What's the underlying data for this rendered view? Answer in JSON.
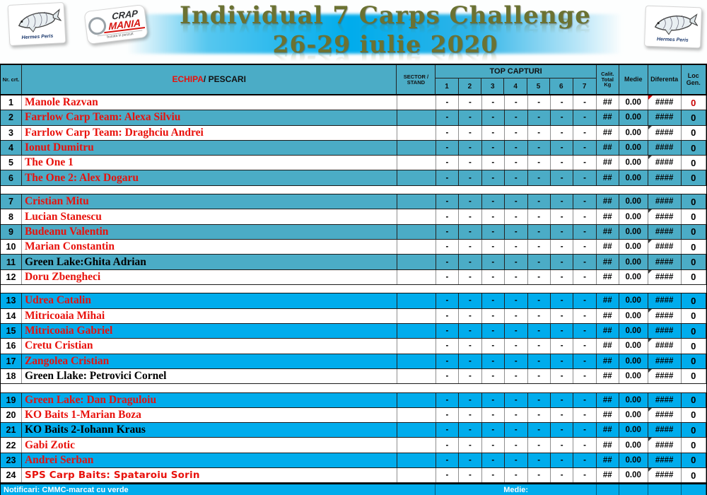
{
  "colors": {
    "teal": "#4BACC6",
    "blue": "#00ACEC",
    "red": "#E8120C",
    "olive": "#6B7232"
  },
  "header": {
    "title_line1": "Individual 7 Carps Challenge",
    "title_line2": "26-29 iulie 2020",
    "logo_left_brand": "Hermes Peris",
    "logo_right_brand": "Hermes Peris",
    "crap_line1": "CRAP",
    "crap_line2": "MANIA",
    "crap_tagline": "bucata in pescuit"
  },
  "table": {
    "headers": {
      "nr": "Nr. crt.",
      "echipa": "ECHIPA",
      "pescari": " / PESCARI",
      "sector": "SECTOR / STAND",
      "top_capturi": "TOP CAPTURI",
      "capture_cols": [
        "1",
        "2",
        "3",
        "4",
        "5",
        "6",
        "7"
      ],
      "calit": "Calit. Total Kg",
      "medie": "Medie",
      "diferenta": "Diferenta",
      "loc": "Loc Gen."
    },
    "gaps_after": [
      6,
      12,
      18
    ],
    "rows": [
      {
        "nr": "1",
        "name": "Manole Razvan",
        "style": "red",
        "shade": "white",
        "sector": "",
        "captures": [
          "-",
          "-",
          "-",
          "-",
          "-",
          "-",
          "-"
        ],
        "calit": "##",
        "medie": "0.00",
        "diferenta": "####",
        "loc": "0",
        "loc_red": true,
        "comment_marker": true
      },
      {
        "nr": "2",
        "name": "Farrlow Carp Team: Alexa Silviu",
        "style": "red",
        "shade": "teal",
        "sector": "",
        "captures": [
          "-",
          "-",
          "-",
          "-",
          "-",
          "-",
          "-"
        ],
        "calit": "##",
        "medie": "0.00",
        "diferenta": "####",
        "loc": "0",
        "loc_red": false
      },
      {
        "nr": "3",
        "name": "Farrlow Carp Team: Draghciu Andrei",
        "style": "red",
        "shade": "white",
        "sector": "",
        "captures": [
          "-",
          "-",
          "-",
          "-",
          "-",
          "-",
          "-"
        ],
        "calit": "##",
        "medie": "0.00",
        "diferenta": "####",
        "loc": "0",
        "loc_red": false
      },
      {
        "nr": "4",
        "name": "Ionut Dumitru",
        "style": "red",
        "shade": "teal",
        "sector": "",
        "captures": [
          "-",
          "-",
          "-",
          "-",
          "-",
          "-",
          "-"
        ],
        "calit": "##",
        "medie": "0.00",
        "diferenta": "####",
        "loc": "0",
        "loc_red": false
      },
      {
        "nr": "5",
        "name": "The One 1",
        "style": "red",
        "shade": "white",
        "sector": "",
        "captures": [
          "-",
          "-",
          "-",
          "-",
          "-",
          "-",
          "-"
        ],
        "calit": "##",
        "medie": "0.00",
        "diferenta": "####",
        "loc": "0",
        "loc_red": false
      },
      {
        "nr": "6",
        "name": "The One 2: Alex Dogaru",
        "style": "red",
        "shade": "teal",
        "sector": "",
        "captures": [
          "-",
          "-",
          "-",
          "-",
          "-",
          "-",
          "-"
        ],
        "calit": "##",
        "medie": "0.00",
        "diferenta": "####",
        "loc": "0",
        "loc_red": false
      },
      {
        "nr": "7",
        "name": "Cristian Mitu",
        "style": "red",
        "shade": "teal",
        "sector": "",
        "captures": [
          "-",
          "-",
          "-",
          "-",
          "-",
          "-",
          "-"
        ],
        "calit": "##",
        "medie": "0.00",
        "diferenta": "####",
        "loc": "0",
        "loc_red": false
      },
      {
        "nr": "8",
        "name": "Lucian Stanescu",
        "style": "red",
        "shade": "white",
        "sector": "",
        "captures": [
          "-",
          "-",
          "-",
          "-",
          "-",
          "-",
          "-"
        ],
        "calit": "##",
        "medie": "0.00",
        "diferenta": "####",
        "loc": "0",
        "loc_red": false
      },
      {
        "nr": "9",
        "name": "Budeanu Valentin",
        "style": "red",
        "shade": "teal",
        "sector": "",
        "captures": [
          "-",
          "-",
          "-",
          "-",
          "-",
          "-",
          "-"
        ],
        "calit": "##",
        "medie": "0.00",
        "diferenta": "####",
        "loc": "0",
        "loc_red": false
      },
      {
        "nr": "10",
        "name": "Marian Constantin",
        "style": "red",
        "shade": "white",
        "sector": "",
        "captures": [
          "-",
          "-",
          "-",
          "-",
          "-",
          "-",
          "-"
        ],
        "calit": "##",
        "medie": "0.00",
        "diferenta": "####",
        "loc": "0",
        "loc_red": false
      },
      {
        "nr": "11",
        "name": "Green Lake:Ghita Adrian",
        "style": "black",
        "shade": "teal",
        "sector": "",
        "captures": [
          "-",
          "-",
          "-",
          "-",
          "-",
          "-",
          "-"
        ],
        "calit": "##",
        "medie": "0.00",
        "diferenta": "####",
        "loc": "0",
        "loc_red": false
      },
      {
        "nr": "12",
        "name": "Doru Zbengheci",
        "style": "red",
        "shade": "white",
        "sector": "",
        "captures": [
          "-",
          "-",
          "-",
          "-",
          "-",
          "-",
          "-"
        ],
        "calit": "##",
        "medie": "0.00",
        "diferenta": "####",
        "loc": "0",
        "loc_red": false
      },
      {
        "nr": "13",
        "name": "Udrea Catalin",
        "style": "red",
        "shade": "blue",
        "sector": "",
        "captures": [
          "-",
          "-",
          "-",
          "-",
          "-",
          "-",
          "-"
        ],
        "calit": "##",
        "medie": "0.00",
        "diferenta": "####",
        "loc": "0",
        "loc_red": false
      },
      {
        "nr": "14",
        "name": "Mitricoaia Mihai",
        "style": "red",
        "shade": "white",
        "sector": "",
        "captures": [
          "-",
          "-",
          "-",
          "-",
          "-",
          "-",
          "-"
        ],
        "calit": "##",
        "medie": "0.00",
        "diferenta": "####",
        "loc": "0",
        "loc_red": false
      },
      {
        "nr": "15",
        "name": "Mitricoaia Gabriel",
        "style": "red",
        "shade": "blue",
        "sector": "",
        "captures": [
          "-",
          "-",
          "-",
          "-",
          "-",
          "-",
          "-"
        ],
        "calit": "##",
        "medie": "0.00",
        "diferenta": "####",
        "loc": "0",
        "loc_red": false
      },
      {
        "nr": "16",
        "name": "Cretu Cristian",
        "style": "red",
        "shade": "white",
        "sector": "",
        "captures": [
          "-",
          "-",
          "-",
          "-",
          "-",
          "-",
          "-"
        ],
        "calit": "##",
        "medie": "0.00",
        "diferenta": "####",
        "loc": "0",
        "loc_red": false
      },
      {
        "nr": "17",
        "name": "Zangolea Cristian",
        "style": "red",
        "shade": "blue",
        "sector": "",
        "captures": [
          "-",
          "-",
          "-",
          "-",
          "-",
          "-",
          "-"
        ],
        "calit": "##",
        "medie": "0.00",
        "diferenta": "####",
        "loc": "0",
        "loc_red": false
      },
      {
        "nr": "18",
        "name": "Green Llake: Petrovici Cornel",
        "style": "black",
        "shade": "white",
        "sector": "",
        "captures": [
          "-",
          "-",
          "-",
          "-",
          "-",
          "-",
          "-"
        ],
        "calit": "##",
        "medie": "0.00",
        "diferenta": "####",
        "loc": "0",
        "loc_red": false
      },
      {
        "nr": "19",
        "name": "Green Lake: Dan Draguloiu",
        "style": "red",
        "shade": "blue",
        "sector": "",
        "captures": [
          "-",
          "-",
          "-",
          "-",
          "-",
          "-",
          "-"
        ],
        "calit": "##",
        "medie": "0.00",
        "diferenta": "####",
        "loc": "0",
        "loc_red": false
      },
      {
        "nr": "20",
        "name": "KO Baits 1-Marian Boza",
        "style": "red",
        "shade": "white",
        "sector": "",
        "captures": [
          "-",
          "-",
          "-",
          "-",
          "-",
          "-",
          "-"
        ],
        "calit": "##",
        "medie": "0.00",
        "diferenta": "####",
        "loc": "0",
        "loc_red": false
      },
      {
        "nr": "21",
        "name": "KO Baits 2-Iohann Kraus",
        "style": "black",
        "shade": "blue",
        "sector": "",
        "captures": [
          "-",
          "-",
          "-",
          "-",
          "-",
          "-",
          "-"
        ],
        "calit": "##",
        "medie": "0.00",
        "diferenta": "####",
        "loc": "0",
        "loc_red": false
      },
      {
        "nr": "22",
        "name": "Gabi Zotic",
        "style": "red",
        "shade": "white",
        "sector": "",
        "captures": [
          "-",
          "-",
          "-",
          "-",
          "-",
          "-",
          "-"
        ],
        "calit": "##",
        "medie": "0.00",
        "diferenta": "####",
        "loc": "0",
        "loc_red": false
      },
      {
        "nr": "23",
        "name": "Andrei Serban",
        "style": "red",
        "shade": "blue",
        "sector": "",
        "captures": [
          "-",
          "-",
          "-",
          "-",
          "-",
          "-",
          "-"
        ],
        "calit": "##",
        "medie": "0.00",
        "diferenta": "####",
        "loc": "0",
        "loc_red": false
      },
      {
        "nr": "24",
        "name": "SPS Carp Baits: Spataroiu Sorin",
        "style": "red-sans",
        "shade": "white",
        "sector": "",
        "captures": [
          "-",
          "-",
          "-",
          "-",
          "-",
          "-",
          "-"
        ],
        "calit": "##",
        "medie": "0.00",
        "diferenta": "####",
        "loc": "0",
        "loc_red": false
      }
    ]
  },
  "footer": {
    "notificari": "Notificari: CMMC-marcat cu verde",
    "medie_label": "Medie:"
  }
}
